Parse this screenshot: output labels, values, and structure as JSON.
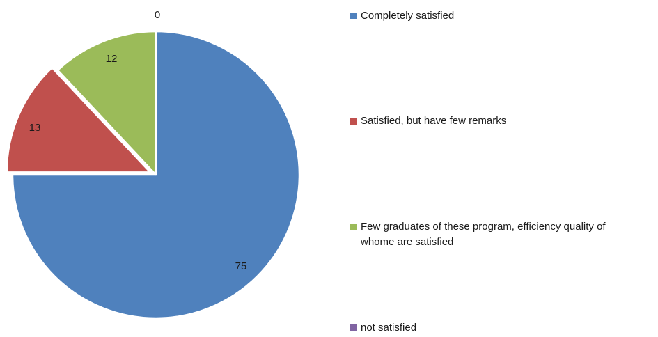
{
  "chart_data": {
    "type": "pie",
    "title": "",
    "start_angle_deg": 0,
    "direction": "clockwise",
    "slices": [
      {
        "label": "Completely satisfied",
        "value": 75,
        "color": "#4f81bd"
      },
      {
        "label": "Satisfied, but have few remarks",
        "value": 13,
        "color": "#c0504d",
        "exploded": true
      },
      {
        "label": "Few graduates of these program, efficiency quality of whome are satisfied",
        "value": 12,
        "color": "#9bbb59"
      },
      {
        "label": "not satisfied",
        "value": 0,
        "color": "#8064a2"
      }
    ],
    "data_labels": [
      "75",
      "13",
      "12",
      "0"
    ],
    "legend": {
      "position": "right",
      "entries": [
        [
          "Completely satisfied"
        ],
        [
          "Satisfied, but have few remarks"
        ],
        [
          "Few graduates of these program, efficiency quality of",
          "whome are satisfied"
        ],
        [
          "not satisfied"
        ]
      ]
    }
  }
}
